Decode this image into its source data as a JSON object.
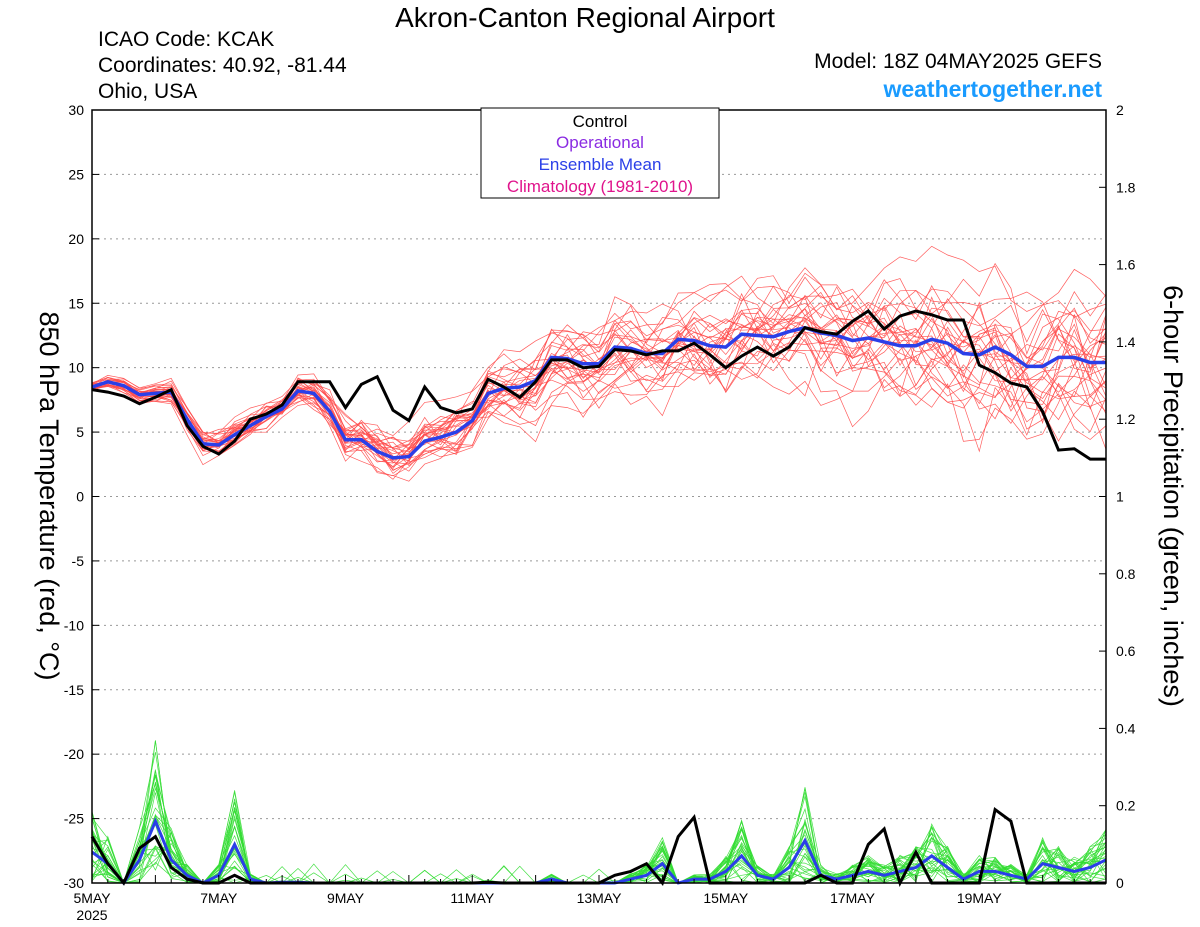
{
  "header": {
    "title": "Akron-Canton Regional Airport",
    "icao": "ICAO Code: KCAK",
    "coordinates": "Coordinates: 40.92, -81.44",
    "location": "Ohio, USA",
    "model": "Model: 18Z 04MAY2025 GEFS",
    "brand": "weathertogether.net"
  },
  "legend": {
    "items": [
      {
        "label": "Control",
        "color": "#000000"
      },
      {
        "label": "Operational",
        "color": "#8a2be2"
      },
      {
        "label": "Ensemble Mean",
        "color": "#2a3fe8"
      },
      {
        "label": "Climatology (1981-2010)",
        "color": "#e0148c"
      }
    ]
  },
  "chart_data": {
    "type": "line",
    "ylabel": "850 hPa Temperature (red, °C)",
    "y2label": "6-hour Precipitation (green, inches)",
    "ylim": [
      -30,
      30
    ],
    "y2lim": [
      0,
      2
    ],
    "yticks": [
      "30",
      "25",
      "20",
      "15",
      "10",
      "5",
      "0",
      "-5",
      "-10",
      "-15",
      "-20",
      "-25",
      "-30"
    ],
    "y2ticks": [
      "2",
      "1.8",
      "1.6",
      "1.4",
      "1.2",
      "1",
      "0.8",
      "0.6",
      "0.4",
      "0.2",
      "0"
    ],
    "xlim_steps": [
      0,
      64
    ],
    "xtick_labels": [
      {
        "step": 0,
        "label": "5MAY",
        "sub": "2025"
      },
      {
        "step": 8,
        "label": "7MAY",
        "sub": ""
      },
      {
        "step": 16,
        "label": "9MAY",
        "sub": ""
      },
      {
        "step": 24,
        "label": "11MAY",
        "sub": ""
      },
      {
        "step": 32,
        "label": "13MAY",
        "sub": ""
      },
      {
        "step": 40,
        "label": "15MAY",
        "sub": ""
      },
      {
        "step": 48,
        "label": "17MAY",
        "sub": ""
      },
      {
        "step": 56,
        "label": "19MAY",
        "sub": ""
      }
    ],
    "colors": {
      "member_temp": "#ff4a4a",
      "member_precip": "#33dd33",
      "control": "#000000",
      "mean": "#2a3fe8"
    },
    "grid": "dotted horizontal",
    "control_temp": [
      8.3,
      8.1,
      7.8,
      7.2,
      7.7,
      8.3,
      5.5,
      3.9,
      3.3,
      4.3,
      6.0,
      6.4,
      7.1,
      8.9,
      8.9,
      8.9,
      6.9,
      8.7,
      9.3,
      6.7,
      5.9,
      8.5,
      6.9,
      6.5,
      6.8,
      9.1,
      8.5,
      7.7,
      8.9,
      10.6,
      10.6,
      10.0,
      10.1,
      11.4,
      11.3,
      11.0,
      11.3,
      11.3,
      11.9,
      11.0,
      10.0,
      10.9,
      11.6,
      10.9,
      11.6,
      13.1,
      12.8,
      12.6,
      13.6,
      14.4,
      13.0,
      14.0,
      14.4,
      14.1,
      13.7,
      13.7,
      10.2,
      9.6,
      8.8,
      8.5,
      6.6,
      3.6,
      3.7,
      2.9,
      2.9
    ],
    "mean_temp": [
      8.5,
      8.9,
      8.6,
      7.9,
      8.0,
      8.1,
      6.0,
      4.1,
      4.0,
      4.8,
      5.5,
      6.2,
      6.8,
      8.2,
      8.0,
      6.6,
      4.4,
      4.4,
      3.5,
      3.0,
      3.1,
      4.3,
      4.6,
      5.0,
      5.9,
      8.0,
      8.4,
      8.5,
      9.0,
      10.8,
      10.7,
      10.3,
      10.3,
      11.6,
      11.5,
      11.1,
      11.1,
      12.2,
      12.1,
      11.7,
      11.6,
      12.6,
      12.5,
      12.4,
      12.8,
      13.1,
      12.7,
      12.5,
      12.1,
      12.3,
      12.0,
      11.7,
      11.7,
      12.2,
      11.9,
      11.1,
      11.0,
      11.6,
      11.0,
      10.1,
      10.1,
      10.8,
      10.8,
      10.4,
      10.4
    ],
    "control_precip": [
      0.12,
      0.05,
      0.0,
      0.09,
      0.12,
      0.04,
      0.01,
      0.0,
      0.0,
      0.02,
      0.0,
      0.0,
      0.0,
      0.0,
      0.0,
      0.0,
      0.0,
      0.0,
      0.0,
      0.0,
      0.0,
      0.0,
      0.0,
      0.0,
      0.0,
      0.002,
      0.0,
      0.0,
      0.0,
      0.0,
      0.0,
      0.0,
      0.0,
      0.02,
      0.03,
      0.05,
      0.0,
      0.12,
      0.17,
      0.0,
      0.0,
      0.0,
      0.0,
      0.0,
      0.0,
      0.0,
      0.02,
      0.0,
      0.0,
      0.1,
      0.14,
      0.0,
      0.08,
      0.0,
      0.0,
      0.0,
      0.0,
      0.19,
      0.16,
      0.0,
      0.0,
      0.0,
      0.0,
      0.0,
      0.0
    ],
    "mean_precip": [
      0.08,
      0.05,
      0.0,
      0.06,
      0.16,
      0.06,
      0.02,
      0.0,
      0.02,
      0.1,
      0.01,
      0.0,
      0.002,
      0.002,
      0.0,
      0.0,
      0.0,
      0.0,
      0.0,
      0.0,
      0.0,
      0.0,
      0.0,
      0.0,
      0.0,
      0.0,
      0.0,
      0.0,
      0.0,
      0.01,
      0.0,
      0.0,
      0.0,
      0.0,
      0.01,
      0.02,
      0.05,
      0.0,
      0.01,
      0.01,
      0.03,
      0.07,
      0.02,
      0.01,
      0.04,
      0.11,
      0.02,
      0.01,
      0.02,
      0.03,
      0.02,
      0.03,
      0.04,
      0.07,
      0.04,
      0.01,
      0.03,
      0.03,
      0.02,
      0.01,
      0.05,
      0.04,
      0.03,
      0.04,
      0.06
    ]
  }
}
